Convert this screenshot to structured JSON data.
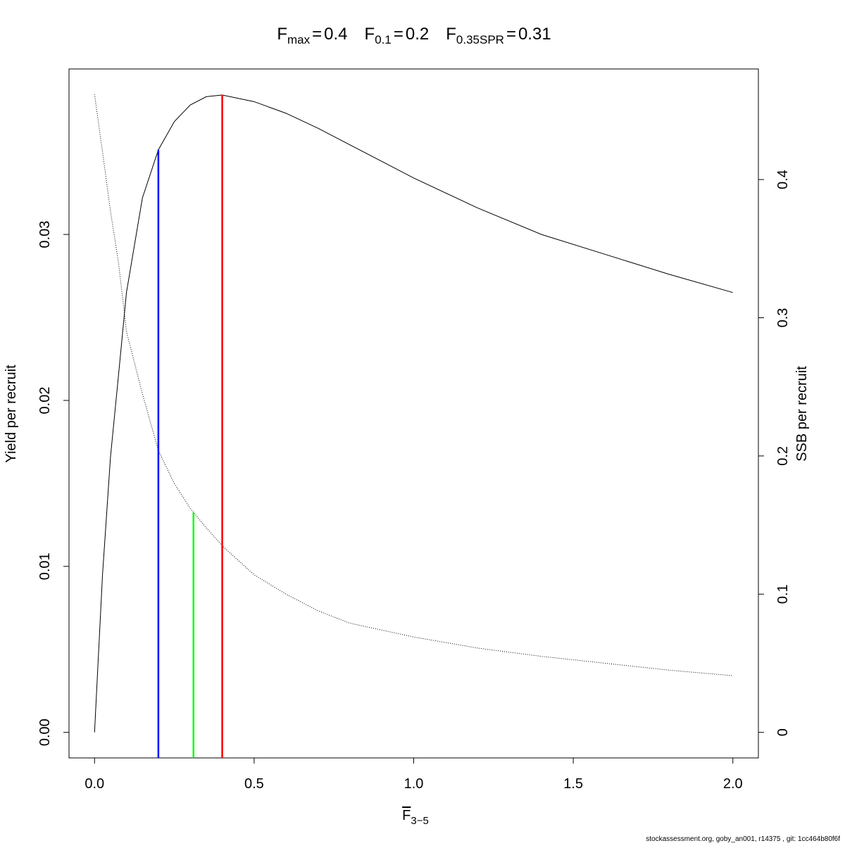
{
  "chart_data": {
    "type": "line",
    "reference_points": [
      {
        "symbol": "F",
        "subscript": "max",
        "operator": "=",
        "value": 0.4,
        "y": 0.0384,
        "axis": "y",
        "color": "#ff0000"
      },
      {
        "symbol": "F",
        "subscript": "0.1",
        "operator": "=",
        "value": 0.2,
        "y": 0.0351,
        "axis": "y",
        "color": "#0000ff"
      },
      {
        "symbol": "F",
        "subscript": "0.35SPR",
        "operator": "=",
        "value": 0.31,
        "y": 0.159,
        "axis": "y2",
        "color": "#00ff00"
      }
    ],
    "x_label": {
      "symbol": "F",
      "subscript": "3−5"
    },
    "y_label": "Yield per recruit",
    "y2_label": "SSB per recruit",
    "x": [
      0,
      0.025,
      0.05,
      0.075,
      0.1,
      0.15,
      0.2,
      0.25,
      0.3,
      0.35,
      0.4,
      0.5,
      0.6,
      0.7,
      0.8,
      0.9,
      1.0,
      1.2,
      1.4,
      1.6,
      1.8,
      2.0
    ],
    "series": [
      {
        "axis": "y",
        "color": "#000000",
        "dash": "solid",
        "values": [
          0,
          0.0095,
          0.0166,
          0.0215,
          0.0265,
          0.0322,
          0.0351,
          0.0368,
          0.0378,
          0.0383,
          0.0384,
          0.038,
          0.0373,
          0.0364,
          0.0354,
          0.0344,
          0.0334,
          0.0316,
          0.03,
          0.0288,
          0.0276,
          0.0265
        ]
      },
      {
        "axis": "y2",
        "color": "#000000",
        "dash": "dotted",
        "values": [
          0.4616,
          0.42,
          0.377,
          0.34,
          0.29,
          0.245,
          0.204,
          0.18,
          0.162,
          0.148,
          0.135,
          0.114,
          0.1,
          0.088,
          0.079,
          0.074,
          0.069,
          0.061,
          0.055,
          0.05,
          0.045,
          0.041
        ]
      }
    ],
    "xlim": [
      -0.08,
      2.08
    ],
    "xticks": [
      {
        "value": 0,
        "label": "0.0"
      },
      {
        "value": 0.5,
        "label": "0.5"
      },
      {
        "value": 1,
        "label": "1.0"
      },
      {
        "value": 1.5,
        "label": "1.5"
      },
      {
        "value": 2,
        "label": "2.0"
      }
    ],
    "ylim": [
      -0.00154,
      0.03997
    ],
    "yticks": [
      {
        "value": 0,
        "label": "0.00"
      },
      0.01,
      0.02,
      0.03
    ],
    "y2lim": [
      -0.0185,
      0.48
    ],
    "y2ticks": [
      0,
      0.1,
      0.2,
      0.3,
      0.4
    ],
    "footer": "stockassessment.org, goby_an001, r14375 , git: 1cc464b80f6f"
  }
}
